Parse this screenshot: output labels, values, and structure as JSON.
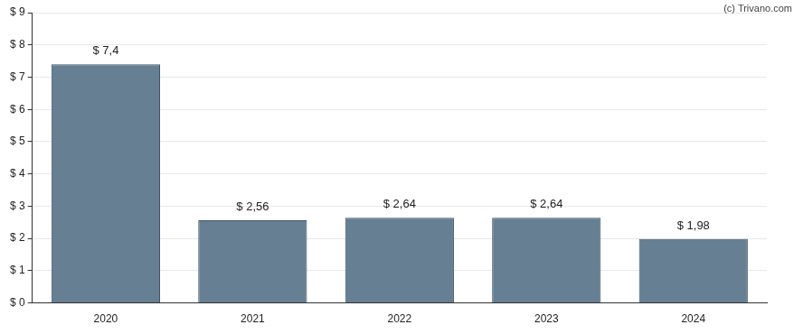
{
  "chart_data": {
    "type": "bar",
    "annotation": "(c) Trivano.com",
    "categories": [
      "2020",
      "2021",
      "2022",
      "2023",
      "2024"
    ],
    "values": [
      7.4,
      2.56,
      2.64,
      2.64,
      1.98
    ],
    "value_labels": [
      "$ 7,4",
      "$ 2,56",
      "$ 2,64",
      "$ 2,64",
      "$ 1,98"
    ],
    "data_labels": true,
    "color": "#667f93",
    "ylim": [
      0,
      9
    ],
    "yticks": [
      {
        "value": 0,
        "label": "$ 0"
      },
      {
        "value": 1,
        "label": "$ 1"
      },
      {
        "value": 2,
        "label": "$ 2"
      },
      {
        "value": 3,
        "label": "$ 3"
      },
      {
        "value": 4,
        "label": "$ 4"
      },
      {
        "value": 5,
        "label": "$ 5"
      },
      {
        "value": 6,
        "label": "$ 6"
      },
      {
        "value": 7,
        "label": "$ 7"
      },
      {
        "value": 8,
        "label": "$ 8"
      },
      {
        "value": 9,
        "label": "$ 9"
      }
    ],
    "grid": true
  }
}
